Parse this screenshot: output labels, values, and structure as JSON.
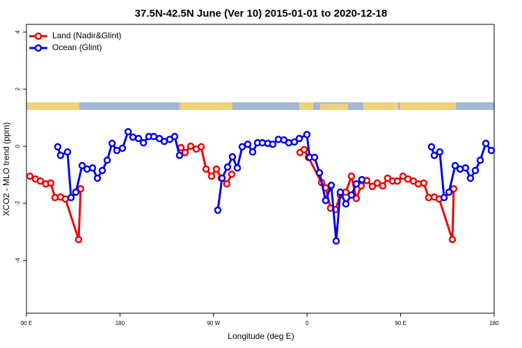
{
  "chart_data": {
    "type": "line",
    "title": "37.5N-42.5N June (Ver 10)   2015-01-01 to 2020-12-18",
    "x_label": "Longitude (deg E)",
    "y_label": "XCO2 - MLO trend (ppm)",
    "xlim": [
      90,
      540
    ],
    "ylim": [
      -5.85,
      4.27
    ],
    "xticks": [
      {
        "value": 90,
        "label": "90 E"
      },
      180,
      {
        "value": 270,
        "label": "90 W"
      },
      {
        "value": 360,
        "label": "0"
      },
      {
        "value": 450,
        "label": "90 E"
      },
      {
        "value": 540,
        "label": "180"
      }
    ],
    "yticks": [
      -4,
      -2,
      0,
      2,
      4
    ],
    "legend": "top-left",
    "series": [
      {
        "name": "Land (Nadir&Glint)",
        "color": "#ee0000",
        "x": [
          93.3,
          98.7,
          103.4,
          108.7,
          113.4,
          117.5,
          122.8,
          127.5,
          140.2,
          142.2,
          null,
          238.7,
          242.7,
          248.0,
          253.4,
          258.1,
          262.8,
          268.1,
          272.8,
          277.5,
          282.8,
          287.5,
          null,
          353.2,
          357.2,
          361.2,
          373.9,
          377.9,
          382.6,
          387.3,
          392.0,
          397.3,
          402.7,
          407.4,
          412.1,
          417.4,
          422.8,
          427.5,
          432.8,
          437.5,
          442.2,
          446.9,
          452.3,
          457.0,
          462.3,
          467.0,
          472.3,
          477.0,
          482.4,
          487.1,
          499.8,
          501.1
        ],
        "values": [
          -1.05,
          -1.15,
          -1.22,
          -1.32,
          -1.29,
          -1.8,
          -1.78,
          -1.85,
          -3.27,
          -1.49,
          null,
          -0.05,
          -0.22,
          0.0,
          -0.1,
          -0.02,
          -0.8,
          -1.05,
          -0.8,
          -1.12,
          -1.32,
          -0.98,
          null,
          -0.22,
          -0.12,
          -0.39,
          -1.27,
          -1.46,
          -2.17,
          -2.22,
          -1.71,
          -1.61,
          -1.05,
          -1.83,
          -1.39,
          -1.2,
          -1.41,
          -1.29,
          -1.39,
          -1.12,
          -1.22,
          -1.22,
          -1.05,
          -1.15,
          -1.22,
          -1.32,
          -1.29,
          -1.8,
          -1.78,
          -1.85,
          -3.27,
          -1.49
        ]
      },
      {
        "name": "Ocean (Glint)",
        "color": "#0000ee",
        "x": [
          120.1,
          122.8,
          129.5,
          132.9,
          137.5,
          143.6,
          148.3,
          153.6,
          158.3,
          163.0,
          167.7,
          172.4,
          177.0,
          182.4,
          187.8,
          192.4,
          197.8,
          202.5,
          207.8,
          212.5,
          217.9,
          222.6,
          227.9,
          232.6,
          237.3,
          null,
          274.1,
          278.2,
          283.5,
          288.2,
          292.9,
          297.6,
          302.9,
          307.6,
          312.3,
          317.0,
          322.3,
          327.0,
          332.4,
          337.7,
          342.4,
          347.8,
          352.5,
          359.8,
          362.5,
          367.2,
          371.9,
          377.9,
          383.3,
          388.0,
          392.0,
          397.3,
          402.7,
          407.4,
          412.7,
          null,
          479.7,
          482.4,
          487.7,
          491.8,
          496.5,
          502.5,
          507.2,
          512.5,
          517.2,
          521.9,
          526.6,
          532.0,
          537.3
        ],
        "values": [
          -0.02,
          -0.32,
          -0.2,
          -1.8,
          -1.61,
          -0.68,
          -0.8,
          -0.76,
          -1.12,
          -0.85,
          -0.49,
          0.1,
          -0.15,
          -0.07,
          0.51,
          0.32,
          0.27,
          0.12,
          0.34,
          0.34,
          0.27,
          0.17,
          0.24,
          0.34,
          -0.32,
          null,
          -2.24,
          -1.12,
          -0.73,
          -0.37,
          -0.76,
          -0.02,
          0.07,
          -0.2,
          0.12,
          0.12,
          0.1,
          0.07,
          0.24,
          0.22,
          0.12,
          0.15,
          0.27,
          0.41,
          -0.39,
          -0.39,
          -0.93,
          -1.9,
          -1.37,
          -3.32,
          -1.61,
          -2.02,
          -1.71,
          -1.32,
          -1.17,
          null,
          -0.02,
          -0.32,
          -0.2,
          -1.8,
          -1.61,
          -0.68,
          -0.8,
          -0.76,
          -1.12,
          -0.85,
          -0.49,
          0.1,
          -0.15
        ]
      }
    ]
  }
}
